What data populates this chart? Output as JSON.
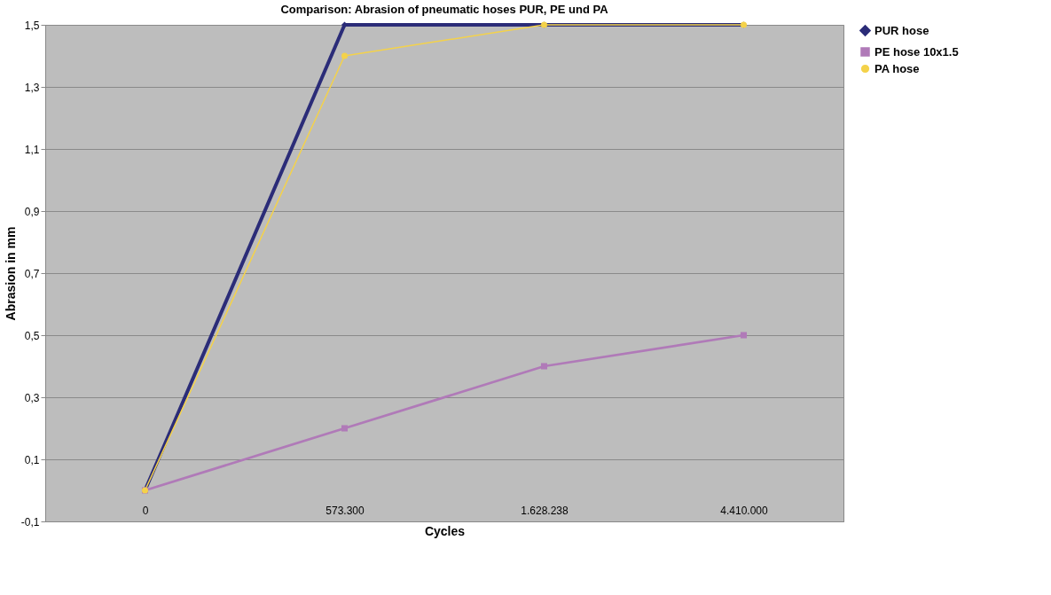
{
  "chart_data": {
    "type": "line",
    "title": "Comparison: Abrasion of pneumatic hoses PUR, PE und PA",
    "xlabel": "Cycles",
    "ylabel": "Abrasion in mm",
    "categories": [
      "0",
      "573.300",
      "1.628.238",
      "4.410.000"
    ],
    "series": [
      {
        "name": "PUR hose",
        "color": "#2b2c78",
        "marker": "diamond",
        "values": [
          0,
          1.5,
          1.5,
          1.5
        ]
      },
      {
        "name": "PE hose 10x1.5",
        "color": "#b07ab8",
        "marker": "square",
        "values": [
          0,
          0.2,
          0.4,
          0.5
        ]
      },
      {
        "name": "PA hose",
        "color": "#f4d24a",
        "marker": "circle",
        "values": [
          0,
          1.4,
          1.5,
          1.5
        ]
      }
    ],
    "ylim": [
      -0.1,
      1.5
    ],
    "yticks": [
      {
        "value": -0.1,
        "label": "-0,1"
      },
      {
        "value": 0.1,
        "label": "0,1"
      },
      {
        "value": 0.3,
        "label": "0,3"
      },
      {
        "value": 0.5,
        "label": "0,5"
      },
      {
        "value": 0.7,
        "label": "0,7"
      },
      {
        "value": 0.9,
        "label": "0,9"
      },
      {
        "value": 1.1,
        "label": "1,1"
      },
      {
        "value": 1.3,
        "label": "1,3"
      },
      {
        "value": 1.5,
        "label": "1,5"
      }
    ],
    "grid": "y",
    "legend": "right"
  }
}
